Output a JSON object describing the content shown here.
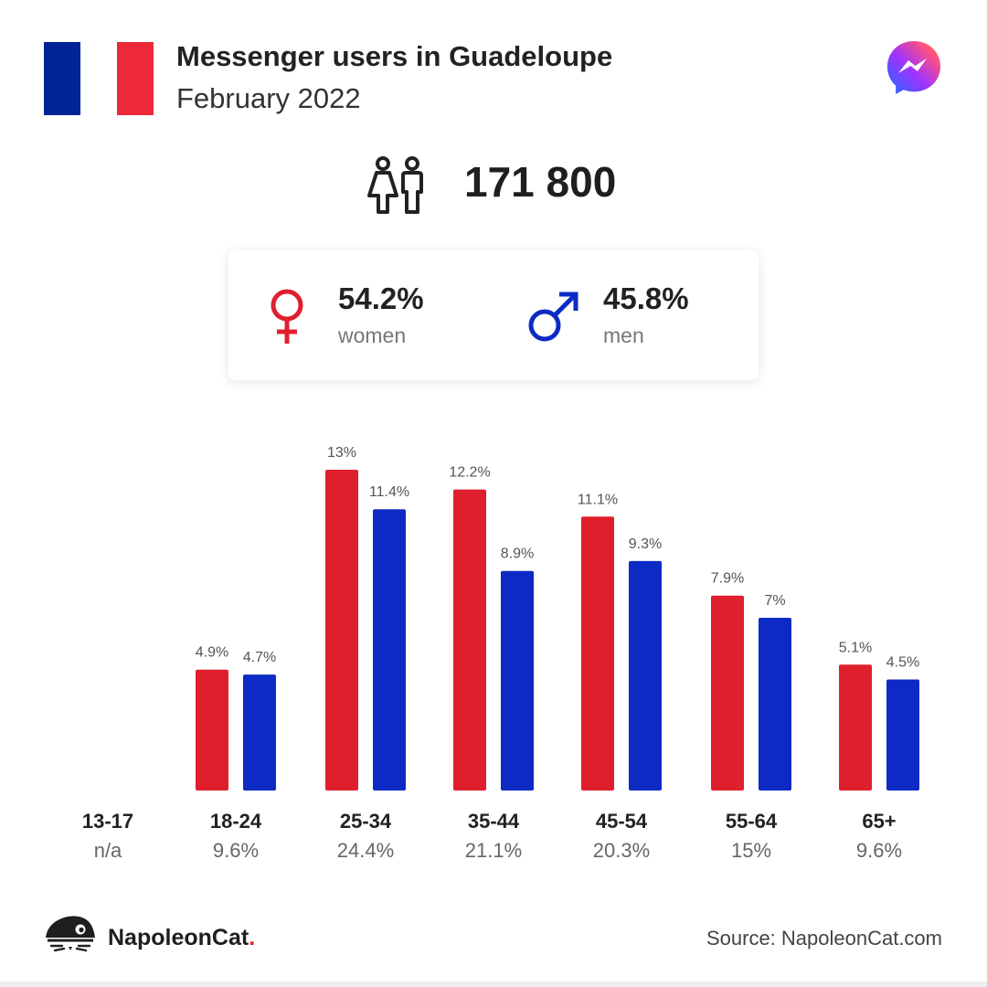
{
  "header": {
    "title": "Messenger users in Guadeloupe",
    "subtitle": "February 2022",
    "flag_colors": [
      "#002395",
      "#ffffff",
      "#ED2939"
    ],
    "app_icon": "messenger-icon"
  },
  "total": {
    "icon": "people-icon",
    "value": "171 800"
  },
  "gender": {
    "women": {
      "icon": "female-icon",
      "pct": "54.2%",
      "label": "women",
      "color": "#E01F2D"
    },
    "men": {
      "icon": "male-icon",
      "pct": "45.8%",
      "label": "men",
      "color": "#0D2BC4"
    }
  },
  "chart_data": {
    "type": "bar",
    "categories": [
      "13-17",
      "18-24",
      "25-34",
      "35-44",
      "45-54",
      "55-64",
      "65+"
    ],
    "category_shares": [
      "n/a",
      "9.6%",
      "24.4%",
      "21.1%",
      "20.3%",
      "15%",
      "9.6%"
    ],
    "series": [
      {
        "values": [
          null,
          4.9,
          13,
          12.2,
          11.1,
          7.9,
          5.1
        ],
        "labels": [
          "",
          "4.9%",
          "13%",
          "12.2%",
          "11.1%",
          "7.9%",
          "5.1%"
        ],
        "color": "#E01F2D"
      },
      {
        "values": [
          null,
          4.7,
          11.4,
          8.9,
          9.3,
          7,
          4.5
        ],
        "labels": [
          "",
          "4.7%",
          "11.4%",
          "8.9%",
          "9.3%",
          "7%",
          "4.5%"
        ],
        "color": "#0D2BC4"
      }
    ],
    "ylim": [
      0,
      13
    ],
    "grid": false,
    "legend": "none"
  },
  "footer": {
    "logo_icon": "napoleoncat-icon",
    "logo_text": "NapoleonCat",
    "logo_dot": ".",
    "source": "Source: NapoleonCat.com"
  }
}
